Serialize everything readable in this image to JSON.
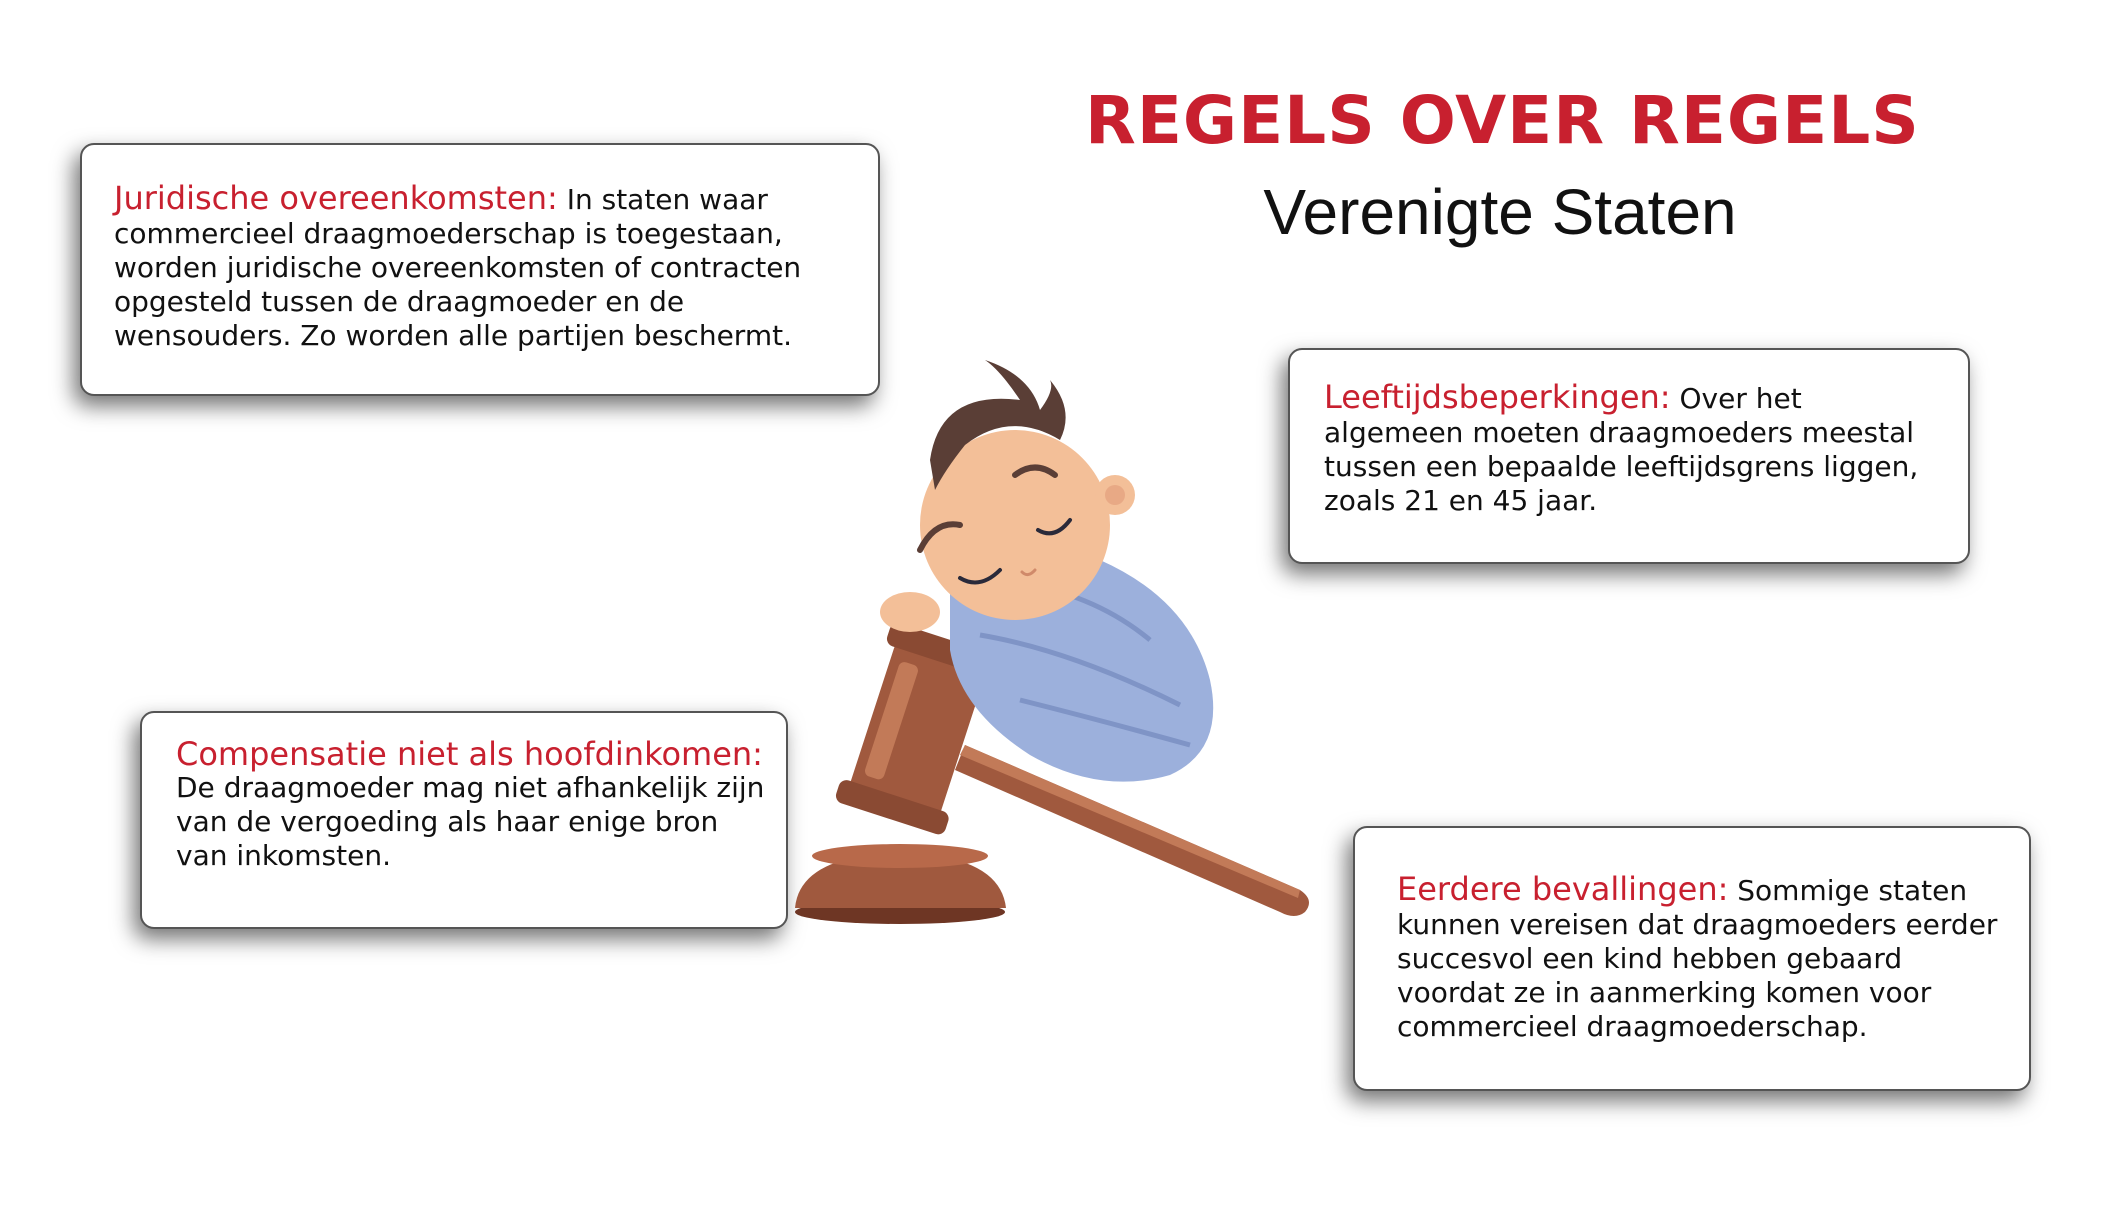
{
  "header": {
    "title": "REGELS OVER REGELS",
    "subtitle": "Verenigte Staten"
  },
  "cards": [
    {
      "heading": "Juridische overeenkomsten:",
      "body": "In staten waar commercieel draagmoederschap is toegestaan, worden juridische overeenkomsten of contracten opgesteld tussen de draagmoeder en de wensouders. Zo worden alle partijen beschermt."
    },
    {
      "heading": "Leeftijdsbeperkingen:",
      "body": "Over het algemeen moeten draagmoeders meestal tussen een bepaalde leeftijdsgrens liggen, zoals 21 en 45 jaar."
    },
    {
      "heading": "Compensatie niet als hoofdinkomen:",
      "body": "De draagmoeder mag niet afhankelijk zijn van de vergoeding als haar enige bron van inkomsten."
    },
    {
      "heading": "Eerdere bevallingen:",
      "body": "Sommige staten kunnen vereisen dat draagmoeders eerder succesvol een kind hebben gebaard voordat ze in aanmerking komen voor commercieel draagmoederschap."
    }
  ],
  "colors": {
    "accent": "#c8202f",
    "text": "#111111",
    "blanket": "#9cb0dc",
    "skin": "#f3bf98",
    "hair": "#5a3e36",
    "gavel": "#a0593e"
  }
}
